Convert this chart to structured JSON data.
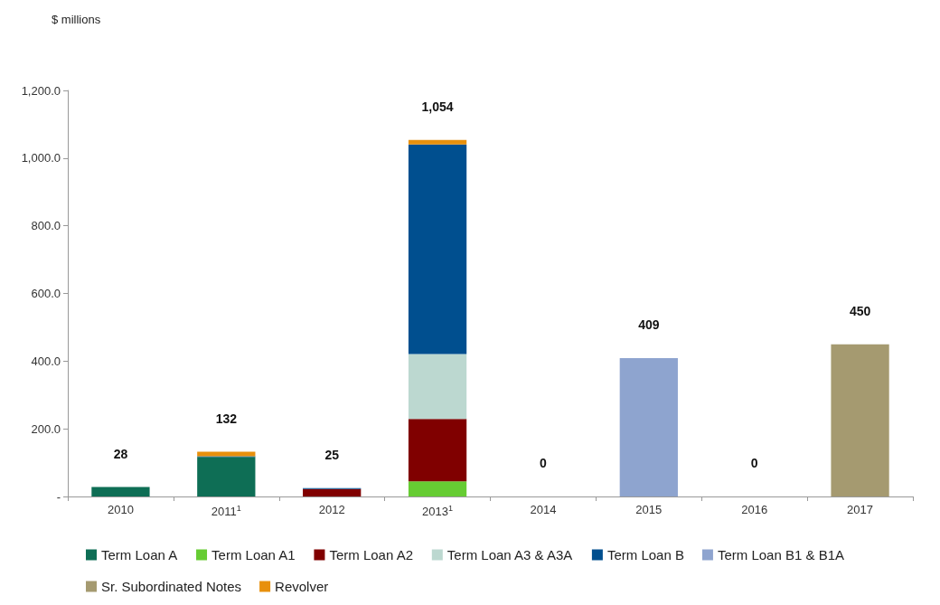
{
  "chart_data": {
    "type": "bar",
    "stacked": true,
    "ylabel": "$ millions",
    "categories": [
      "2010",
      "2011$^{1}$",
      "2012",
      "2013$^{1}$",
      "2014",
      "2015",
      "2016",
      "2017"
    ],
    "series": [
      {
        "name": "Term Loan A",
        "color": "#0e6e55",
        "values": [
          28,
          117,
          null,
          null,
          null,
          null,
          null,
          null
        ]
      },
      {
        "name": "Term Loan A1",
        "color": "#66cc33",
        "values": [
          null,
          null,
          null,
          45,
          null,
          null,
          null,
          null
        ]
      },
      {
        "name": "Term Loan A2",
        "color": "#800000",
        "values": [
          null,
          null,
          22,
          184,
          null,
          null,
          null,
          null
        ]
      },
      {
        "name": "Term Loan A3 & A3A",
        "color": "#bcd8d0",
        "values": [
          null,
          null,
          null,
          192,
          null,
          null,
          null,
          null
        ]
      },
      {
        "name": "Term Loan B",
        "color": "#004f8f",
        "values": [
          null,
          2,
          3,
          619,
          null,
          null,
          null,
          null
        ]
      },
      {
        "name": "Term Loan B1 & B1A",
        "color": "#8ea4cf",
        "values": [
          null,
          null,
          null,
          null,
          null,
          409,
          null,
          null
        ]
      },
      {
        "name": "Sr. Subordinated Notes",
        "color": "#a59a70",
        "values": [
          null,
          null,
          null,
          null,
          null,
          null,
          null,
          450
        ]
      },
      {
        "name": "Revolver",
        "color": "#e8900c",
        "values": [
          null,
          13,
          null,
          14,
          null,
          null,
          null,
          null
        ]
      }
    ],
    "totals": [
      "28",
      "132",
      "25",
      "1,054",
      "0",
      "409",
      "0",
      "450"
    ],
    "ylim": [
      0,
      1200
    ],
    "yticks": [
      {
        "value": 0,
        "label": "-"
      },
      {
        "value": 200,
        "label": "200.0"
      },
      {
        "value": 400,
        "label": "400.0"
      },
      {
        "value": 600,
        "label": "600.0"
      },
      {
        "value": 800,
        "label": "800.0"
      },
      {
        "value": 1000,
        "label": "1,000.0"
      },
      {
        "value": 1200,
        "label": "1,200.0"
      }
    ],
    "grid": false,
    "legend": "bottom"
  }
}
